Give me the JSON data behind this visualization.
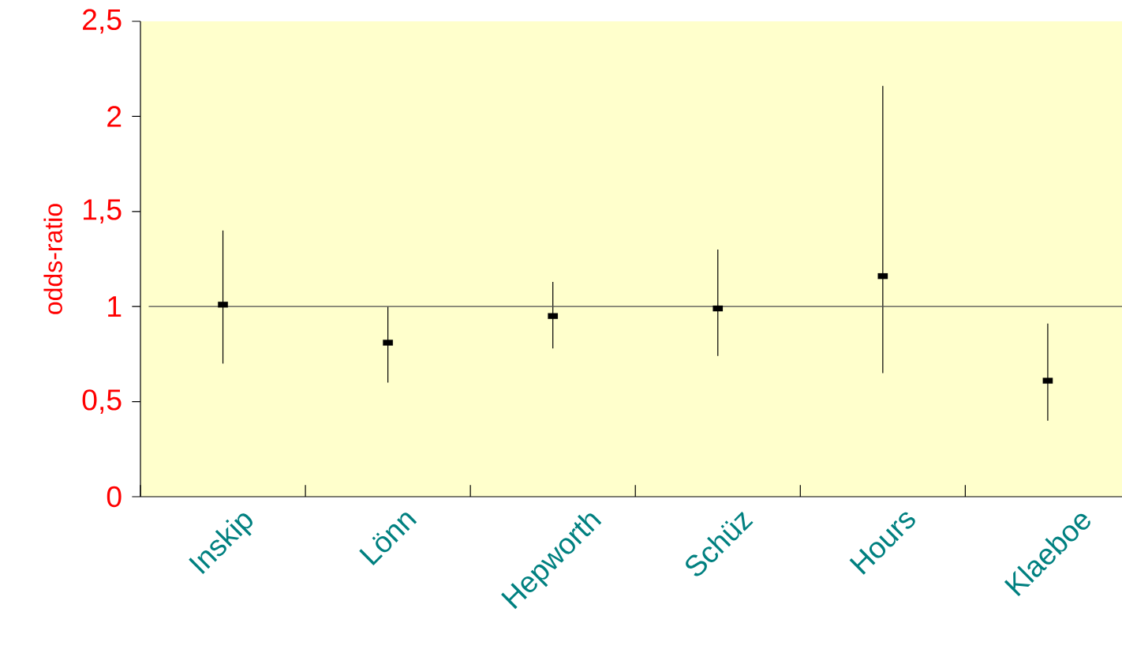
{
  "chart_data": {
    "type": "scatter",
    "ylabel": "odds-ratio",
    "categories": [
      "Inskip",
      "Lönn",
      "Hepworth",
      "Schüz",
      "Hours",
      "Klaeboe"
    ],
    "series": [
      {
        "color": "#000000",
        "values": [
          1.01,
          0.81,
          0.95,
          0.99,
          1.16,
          0.61
        ],
        "errors": [
          [
            0.7,
            1.4
          ],
          [
            0.6,
            1.0
          ],
          [
            0.78,
            1.13
          ],
          [
            0.74,
            1.3
          ],
          [
            0.65,
            2.16
          ],
          [
            0.4,
            0.91
          ]
        ]
      }
    ],
    "ylim": [
      0,
      2.5
    ],
    "marker": "square",
    "yticks": [
      0,
      {
        "value": 0.5,
        "label": "0,5"
      },
      1,
      {
        "value": 1.5,
        "label": "1,5"
      },
      2,
      {
        "value": 2.5,
        "label": "2,5"
      }
    ],
    "ref_lines": [
      {
        "axis": "y",
        "value": 1
      }
    ]
  }
}
